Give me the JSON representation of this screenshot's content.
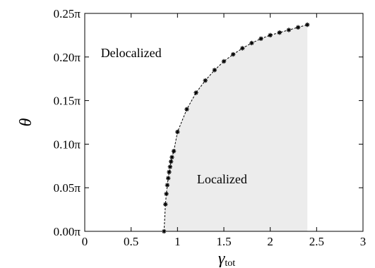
{
  "chart_data": {
    "type": "line",
    "xlabel": "γ",
    "xlabel_sub": "tot",
    "ylabel": "θ",
    "xlim": [
      0,
      3
    ],
    "ylim": [
      0,
      0.25
    ],
    "x_ticks": [
      0,
      0.5,
      1,
      1.5,
      2,
      2.5,
      3
    ],
    "x_tick_labels": [
      "0",
      "0.5",
      "1",
      "1.5",
      "2",
      "2.5",
      "3"
    ],
    "y_ticks": [
      0,
      0.05,
      0.1,
      0.15,
      0.2,
      0.25
    ],
    "y_tick_labels": [
      "0.00π",
      "0.05π",
      "0.10π",
      "0.15π",
      "0.20π",
      "0.25π"
    ],
    "grid": false,
    "region_fill_color": "#ececec",
    "annotations": [
      {
        "text": "Delocalized",
        "x": 0.5,
        "y": 0.2
      },
      {
        "text": "Localized",
        "x": 1.48,
        "y": 0.055
      }
    ],
    "series": [
      {
        "x": [
          0.855,
          0.87,
          0.88,
          0.89,
          0.9,
          0.91,
          0.92,
          0.93,
          0.94,
          0.96,
          1.0,
          1.1,
          1.2,
          1.3,
          1.4,
          1.5,
          1.6,
          1.7,
          1.8,
          1.9,
          2.0,
          2.1,
          2.2,
          2.3,
          2.4
        ],
        "values": [
          0.0,
          0.031,
          0.043,
          0.053,
          0.061,
          0.068,
          0.074,
          0.08,
          0.085,
          0.092,
          0.114,
          0.14,
          0.159,
          0.173,
          0.185,
          0.195,
          0.203,
          0.21,
          0.216,
          0.221,
          0.225,
          0.228,
          0.231,
          0.234,
          0.237
        ]
      }
    ]
  }
}
